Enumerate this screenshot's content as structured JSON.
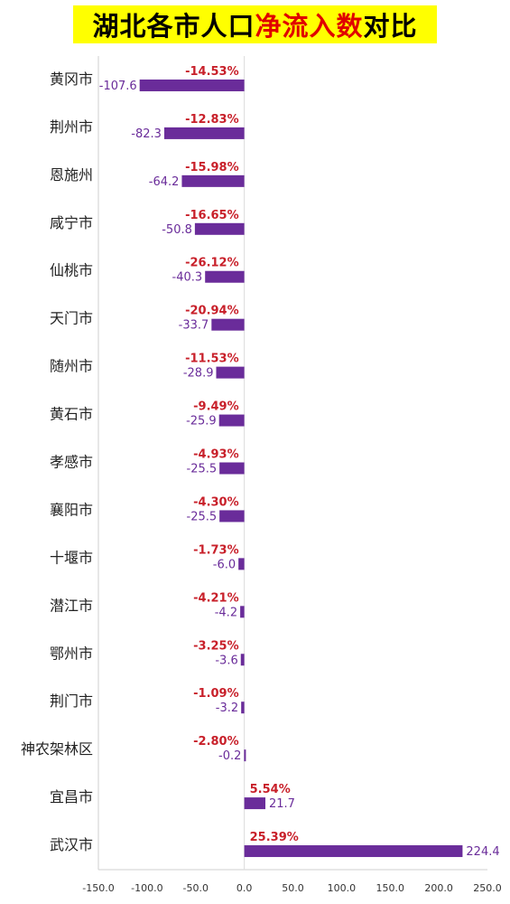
{
  "title": {
    "part1": "湖北各市人口",
    "highlight": "净流入数",
    "part2": "对比"
  },
  "colors": {
    "bar": "#6a2c9a",
    "percent": "#c8202a",
    "title_bg": "#ffff00",
    "title_highlight": "#e00000"
  },
  "chart_data": {
    "type": "bar",
    "orientation": "horizontal",
    "title": "湖北各市人口净流入数对比",
    "xlim": [
      -150,
      250
    ],
    "xticks": [
      "-150.0",
      "-100.0",
      "-50.0",
      "0.0",
      "50.0",
      "100.0",
      "150.0",
      "200.0",
      "250.0"
    ],
    "xtick_values": [
      -150,
      -100,
      -50,
      0,
      50,
      100,
      150,
      200,
      250
    ],
    "grid": false,
    "categories": [
      "黄冈市",
      "荆州市",
      "恩施州",
      "咸宁市",
      "仙桃市",
      "天门市",
      "随州市",
      "黄石市",
      "孝感市",
      "襄阳市",
      "十堰市",
      "潜江市",
      "鄂州市",
      "荆门市",
      "神农架林区",
      "宜昌市",
      "武汉市"
    ],
    "series": [
      {
        "values": [
          -107.6,
          -82.3,
          -64.2,
          -50.8,
          -40.3,
          -33.7,
          -28.9,
          -25.9,
          -25.5,
          -25.5,
          -6.0,
          -4.2,
          -3.6,
          -3.2,
          -0.2,
          21.7,
          224.4
        ],
        "labels": [
          "-107.6",
          "-82.3",
          "-64.2",
          "-50.8",
          "-40.3",
          "-33.7",
          "-28.9",
          "-25.9",
          "-25.5",
          "-25.5",
          "-6.0",
          "-4.2",
          "-3.6",
          "-3.2",
          "-0.2",
          "21.7",
          "224.4"
        ]
      },
      {
        "values": [
          -14.53,
          -12.83,
          -15.98,
          -16.65,
          -26.12,
          -20.94,
          -11.53,
          -9.49,
          -4.93,
          -4.3,
          -1.73,
          -4.21,
          -3.25,
          -1.09,
          -2.8,
          5.54,
          25.39
        ],
        "labels": [
          "-14.53%",
          "-12.83%",
          "-15.98%",
          "-16.65%",
          "-26.12%",
          "-20.94%",
          "-11.53%",
          "-9.49%",
          "-4.93%",
          "-4.30%",
          "-1.73%",
          "-4.21%",
          "-3.25%",
          "-1.09%",
          "-2.80%",
          "5.54%",
          "25.39%"
        ]
      }
    ]
  }
}
